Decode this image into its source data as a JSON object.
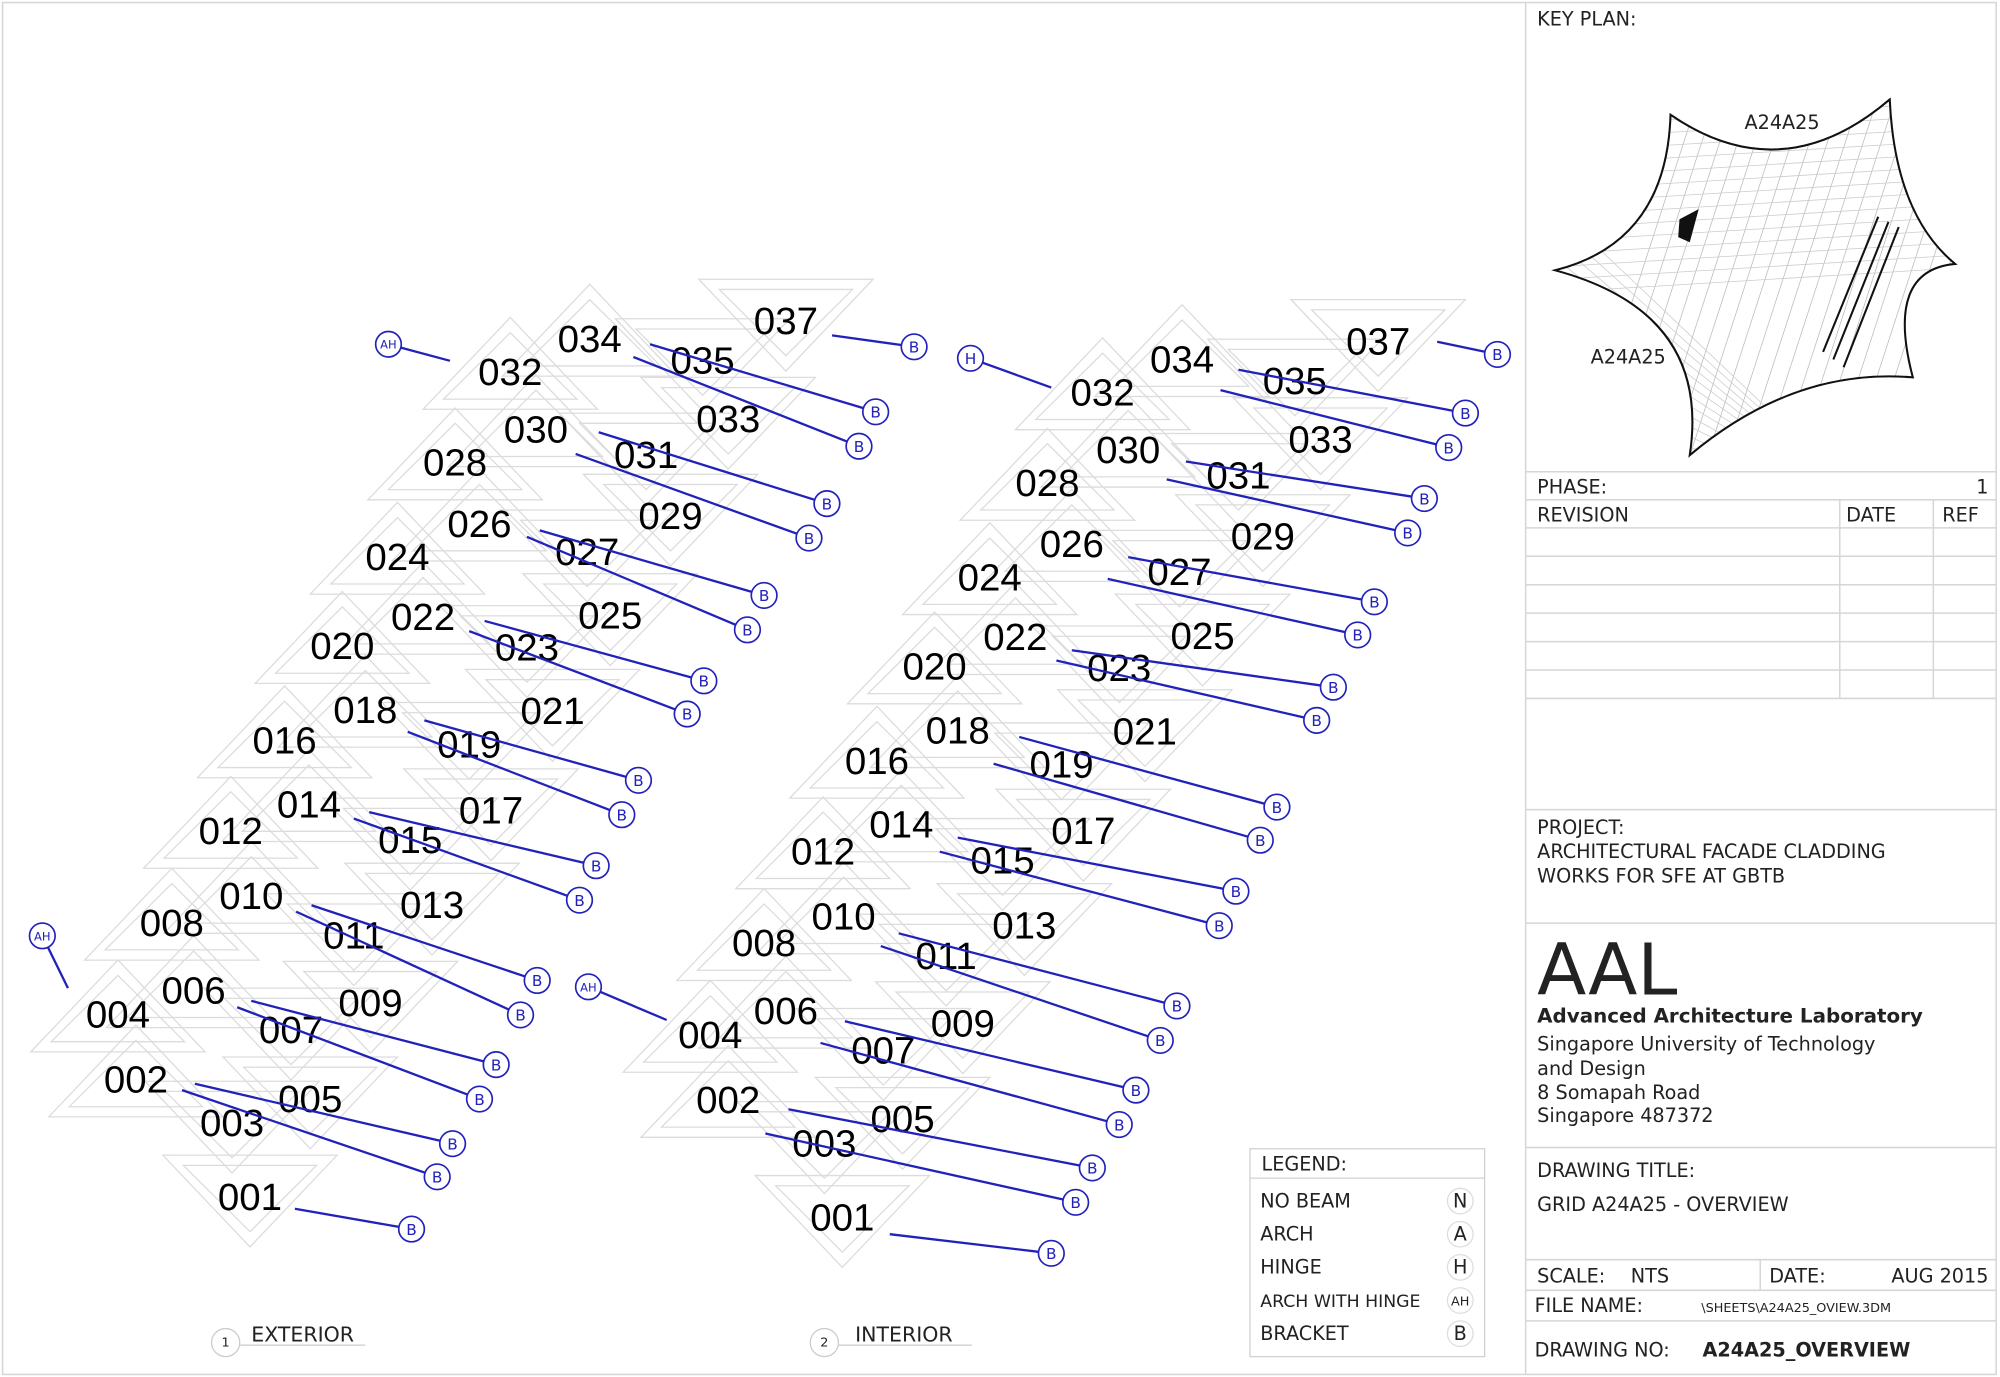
{
  "colors": {
    "connector": "#2222bb",
    "tile_outline": "#dcdcdc",
    "text": "#000000",
    "frame": "#d6d6d6"
  },
  "panels": [
    {
      "number": "1",
      "title": "EXTERIOR",
      "tiles": [
        "001",
        "002",
        "003",
        "004",
        "005",
        "006",
        "007",
        "008",
        "009",
        "010",
        "011",
        "012",
        "013",
        "014",
        "015",
        "016",
        "017",
        "018",
        "019",
        "020",
        "021",
        "022",
        "023",
        "024",
        "025",
        "026",
        "027",
        "028",
        "029",
        "030",
        "031",
        "032",
        "033",
        "034",
        "035",
        "037"
      ],
      "connectors": [
        "AH",
        "AH",
        "B",
        "B",
        "B",
        "B",
        "B",
        "B",
        "B",
        "B",
        "B",
        "B",
        "B",
        "B",
        "B",
        "B",
        "B",
        "B",
        "B",
        "B",
        "B",
        "B"
      ]
    },
    {
      "number": "2",
      "title": "INTERIOR",
      "tiles": [
        "001",
        "002",
        "003",
        "004",
        "005",
        "006",
        "007",
        "008",
        "009",
        "010",
        "011",
        "012",
        "013",
        "014",
        "015",
        "016",
        "017",
        "018",
        "019",
        "020",
        "021",
        "022",
        "023",
        "024",
        "025",
        "026",
        "027",
        "028",
        "029",
        "030",
        "031",
        "032",
        "033",
        "034",
        "035",
        "037"
      ],
      "connectors": [
        "H",
        "AH",
        "B",
        "B",
        "B",
        "B",
        "B",
        "B",
        "B",
        "B",
        "B",
        "B",
        "B",
        "B",
        "B",
        "B",
        "B",
        "B",
        "B",
        "B",
        "B",
        "B"
      ]
    }
  ],
  "legend": {
    "title": "LEGEND:",
    "items": [
      {
        "label": "NO BEAM",
        "symbol": "N"
      },
      {
        "label": "ARCH",
        "symbol": "A"
      },
      {
        "label": "HINGE",
        "symbol": "H"
      },
      {
        "label": "ARCH WITH HINGE",
        "symbol": "AH"
      },
      {
        "label": "BRACKET",
        "symbol": "B"
      }
    ]
  },
  "title_block": {
    "key_plan": {
      "label": "KEY PLAN:",
      "grid_label_top": "A24A25",
      "grid_label_left": "A24A25"
    },
    "phase_label": "PHASE:",
    "phase_value": "1",
    "revision_headers": {
      "revision": "REVISION",
      "date": "DATE",
      "ref": "REF"
    },
    "project_label": "PROJECT:",
    "project_line1": "ARCHITECTURAL FACADE CLADDING",
    "project_line2": "WORKS FOR SFE AT GBTB",
    "logo": "AAL",
    "org_name": "Advanced Architecture Laboratory",
    "address": [
      "Singapore University of Technology",
      "and Design",
      "8 Somapah Road",
      "Singapore 487372"
    ],
    "drawing_title_label": "DRAWING TITLE:",
    "drawing_title": "GRID A24A25 - OVERVIEW",
    "scale_label": "SCALE:",
    "scale_value": "NTS",
    "date_label": "DATE:",
    "date_value": "AUG 2015",
    "file_name_label": "FILE NAME:",
    "file_name_value": "\\SHEETS\\A24A25_OVIEW.3DM",
    "drawing_no_label": "DRAWING NO:",
    "drawing_no_value": "A24A25_OVERVIEW"
  }
}
